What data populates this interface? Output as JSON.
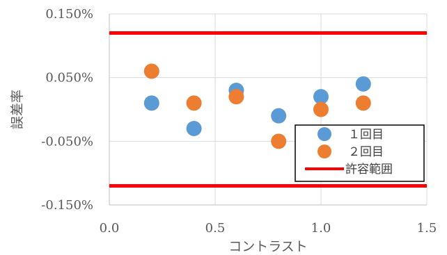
{
  "chart_data": {
    "type": "scatter",
    "xlabel": "コントラスト",
    "ylabel": "誤差率",
    "xlim": [
      0.0,
      1.5
    ],
    "ylim": [
      -0.0015,
      0.0015
    ],
    "x_ticks": [
      0.0,
      0.5,
      1.0,
      1.5
    ],
    "x_tick_labels": [
      "0.0",
      "0.5",
      "1.0",
      "1.5"
    ],
    "y_ticks": [
      0.0015,
      0.0005,
      -0.0005,
      -0.0015
    ],
    "y_tick_labels": [
      "0.150%",
      "0.050%",
      "-0.050%",
      "-0.150%"
    ],
    "grid": true,
    "legend_position": "lower-right",
    "series": [
      {
        "name": "１回目",
        "color": "#5B9BD5",
        "x": [
          0.2,
          0.4,
          0.6,
          0.8,
          1.0,
          1.2
        ],
        "y": [
          0.0001,
          -0.0003,
          0.0003,
          -0.0001,
          0.0002,
          0.0004
        ]
      },
      {
        "name": "２回目",
        "color": "#ED7D31",
        "x": [
          0.2,
          0.4,
          0.6,
          0.8,
          1.0,
          1.2
        ],
        "y": [
          0.0006,
          0.0001,
          0.0002,
          -0.0005,
          0.0,
          0.0001
        ]
      }
    ],
    "limit_lines": {
      "name": "許容範囲",
      "color": "#FF0000",
      "values": [
        0.0012,
        -0.0012
      ]
    }
  }
}
